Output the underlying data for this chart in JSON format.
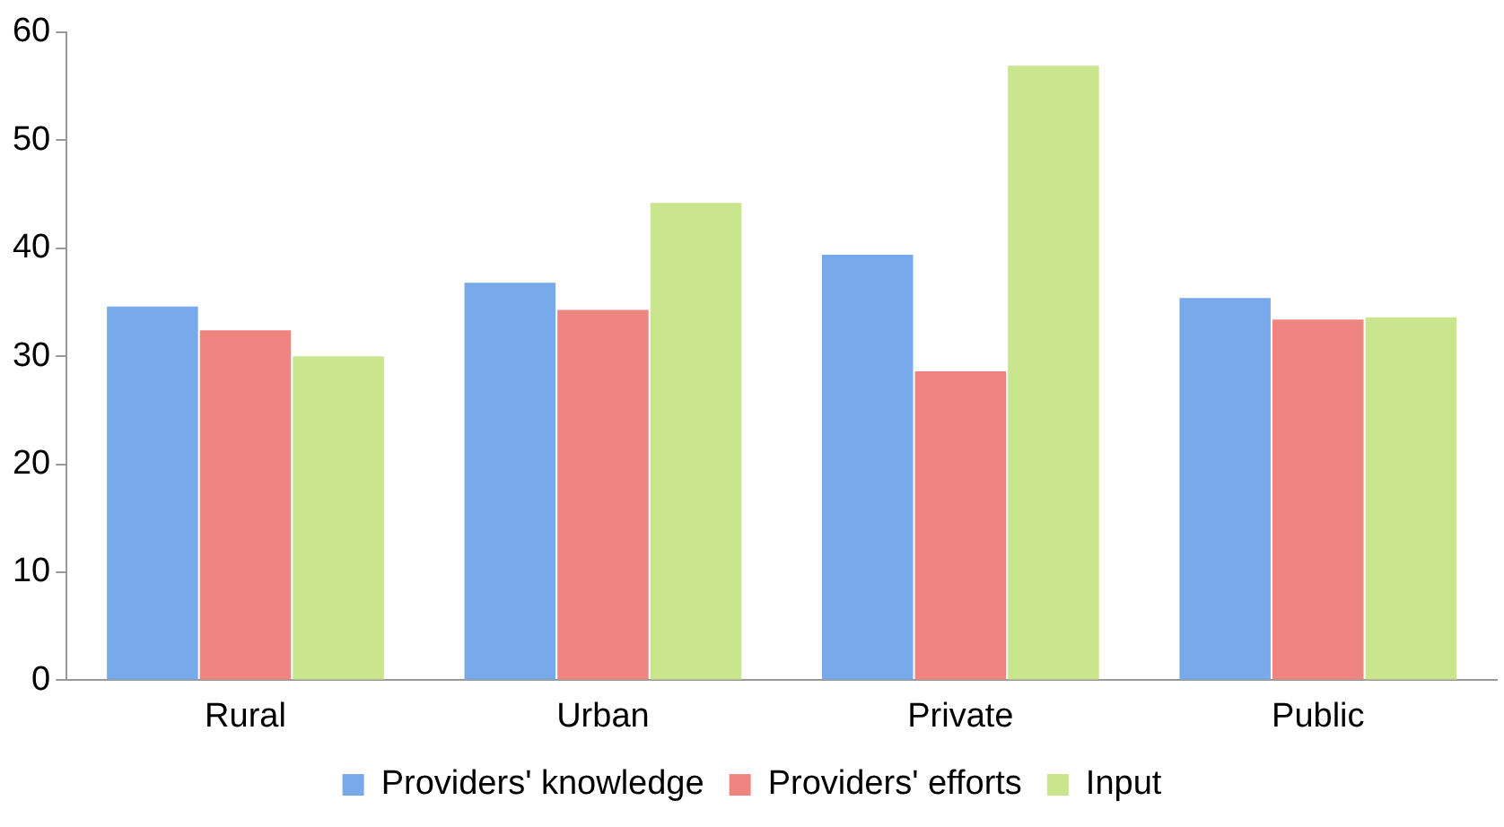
{
  "chart_data": {
    "type": "bar",
    "categories": [
      "Rural",
      "Urban",
      "Private",
      "Public"
    ],
    "series": [
      {
        "name": "Providers' knowledge",
        "color": "#78a9ea",
        "values": [
          34.6,
          36.8,
          39.4,
          35.4
        ]
      },
      {
        "name": "Providers' efforts",
        "color": "#ef8580",
        "values": [
          32.4,
          34.3,
          28.6,
          33.4
        ]
      },
      {
        "name": "Input",
        "color": "#c9e58e",
        "values": [
          30.0,
          44.2,
          56.9,
          33.6
        ]
      }
    ],
    "ylim": [
      0,
      60
    ],
    "yticks": [
      0,
      10,
      20,
      30,
      40,
      50,
      60
    ],
    "grid": false,
    "legend": "bottom"
  }
}
